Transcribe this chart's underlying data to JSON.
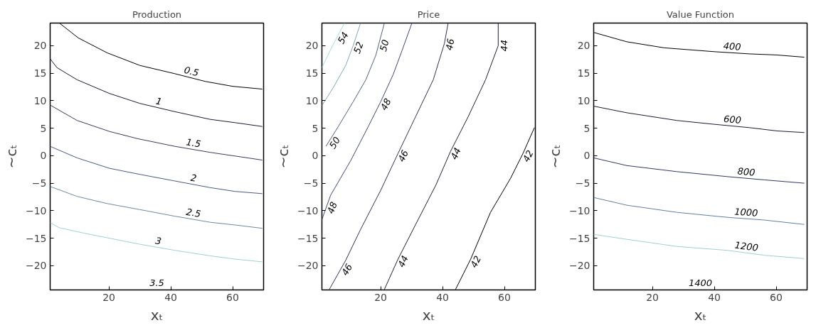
{
  "chart_data": [
    {
      "type": "line",
      "title": "Production",
      "xlabel": "xₜ",
      "ylabel": "~cₜ",
      "xlim": [
        1,
        70
      ],
      "ylim": [
        -24.4,
        24.1
      ],
      "xticks": [
        20,
        40,
        60
      ],
      "yticks": [
        -20,
        -15,
        -10,
        -5,
        0,
        5,
        10,
        15,
        20
      ],
      "grid": false,
      "legend": false,
      "marker": "none",
      "line_style": "solid",
      "series": [
        {
          "name": "0.5",
          "color": "#000000",
          "x": [
            4.0,
            10.1,
            19.4,
            30,
            41.3,
            51.1,
            60,
            69.6
          ],
          "values": [
            24.1,
            21.4,
            18.7,
            16.4,
            14.9,
            13.5,
            12.6,
            12.1
          ]
        },
        {
          "name": "1",
          "color": "#1a1a2e",
          "x": [
            1,
            3.2,
            9.7,
            20.2,
            30,
            41.3,
            52.7,
            60.8,
            69.6
          ],
          "values": [
            17.6,
            16.0,
            13.8,
            11.3,
            9.5,
            8.0,
            6.6,
            6.0,
            5.3
          ]
        },
        {
          "name": "1.5",
          "color": "#3a3a60",
          "x": [
            1,
            9.7,
            20.2,
            29.2,
            41.3,
            52.7,
            60,
            69.6
          ],
          "values": [
            9.2,
            6.4,
            4.4,
            3.1,
            1.7,
            0.6,
            0,
            -0.8
          ]
        },
        {
          "name": "2",
          "color": "#4a5a80",
          "x": [
            1,
            9.7,
            20.2,
            30,
            41.3,
            52.7,
            60.8,
            69.6
          ],
          "values": [
            1.7,
            -0.4,
            -2.3,
            -3.4,
            -4.6,
            -5.8,
            -6.5,
            -6.9
          ]
        },
        {
          "name": "2.5",
          "color": "#6a8aa0",
          "x": [
            1,
            9.7,
            19.4,
            30,
            41.3,
            52.7,
            60.8,
            69.6
          ],
          "values": [
            -5.6,
            -7.4,
            -8.7,
            -9.8,
            -11.0,
            -12.1,
            -12.6,
            -13.2
          ]
        },
        {
          "name": "3",
          "color": "#a0d0d0",
          "x": [
            1,
            4,
            12.1,
            20.2,
            30,
            41.3,
            52.7,
            60.8,
            69.6
          ],
          "values": [
            -12.2,
            -13.1,
            -14.1,
            -15.0,
            -16.1,
            -17.2,
            -18.2,
            -18.8,
            -19.3
          ]
        }
      ],
      "annotations": [
        "3.5"
      ]
    },
    {
      "type": "line",
      "title": "Price",
      "xlabel": "xₜ",
      "ylabel": "~cₜ",
      "xlim": [
        1,
        70
      ],
      "ylim": [
        -24.4,
        24.1
      ],
      "xticks": [
        20,
        40,
        60
      ],
      "yticks": [
        -20,
        -15,
        -10,
        -5,
        0,
        5,
        10,
        15,
        20
      ],
      "grid": false,
      "legend": false,
      "marker": "none",
      "line_style": "solid",
      "series": [
        {
          "color": "#a8d8d8",
          "x": [
            1,
            4,
            8.3
          ],
          "values": [
            16.0,
            19.5,
            24.1
          ]
        },
        {
          "color": "#80a8b8",
          "x": [
            1,
            4.7,
            8.7,
            11.1,
            13.5
          ],
          "values": [
            9.1,
            12.4,
            16.4,
            20,
            24.1
          ]
        },
        {
          "color": "#506080",
          "x": [
            2.3,
            6.3,
            11.1,
            15.2,
            18.4,
            21.2
          ],
          "values": [
            1.7,
            5.3,
            9.8,
            13.8,
            18.2,
            24.1
          ]
        },
        {
          "color": "#404870",
          "x": [
            1,
            3.8,
            10.3,
            16,
            20,
            24,
            26.9,
            30.1
          ],
          "values": [
            -11.6,
            -7.2,
            -0.9,
            5.3,
            9.8,
            14.7,
            19.1,
            24.1
          ]
        },
        {
          "color": "#303050",
          "x": [
            3.4,
            8.7,
            13.5,
            20,
            25.6,
            31.3,
            37,
            40.6,
            41.8
          ],
          "values": [
            -24.3,
            -19.0,
            -13.4,
            -6.3,
            0.4,
            7.1,
            13.8,
            20.4,
            24.1
          ]
        },
        {
          "color": "#202030",
          "x": [
            21.2,
            25.6,
            31.3,
            37.8,
            42.6,
            48.3,
            53.9,
            58,
            58
          ],
          "values": [
            -24.3,
            -18.8,
            -12.5,
            -5.4,
            0.8,
            7.1,
            13.8,
            20,
            24.1
          ]
        },
        {
          "color": "#000000",
          "x": [
            44.2,
            49.1,
            55.5,
            62,
            66,
            69.7
          ],
          "values": [
            -24.3,
            -18.8,
            -10.3,
            -4.1,
            0.4,
            5.1
          ]
        }
      ],
      "annotations": [
        {
          "text": "54",
          "x": 6.2,
          "y": 21.9
        },
        {
          "text": "52",
          "x": 11.1,
          "y": 20
        },
        {
          "text": "50",
          "x": 19.4,
          "y": 20.3
        },
        {
          "text": "50",
          "x": 3.6,
          "y": 2.9
        },
        {
          "text": "48",
          "x": 20,
          "y": 9.8
        },
        {
          "text": "48",
          "x": 2.6,
          "y": -9.1
        },
        {
          "text": "46",
          "x": 40.6,
          "y": 20.4
        },
        {
          "text": "46",
          "x": 25.6,
          "y": 0.4
        },
        {
          "text": "46",
          "x": 7.5,
          "y": -20.2
        },
        {
          "text": "44",
          "x": 58,
          "y": 20
        },
        {
          "text": "44",
          "x": 42.6,
          "y": 0.8
        },
        {
          "text": "44",
          "x": 25.6,
          "y": -18.8
        },
        {
          "text": "42",
          "x": 66,
          "y": 0.4
        },
        {
          "text": "42",
          "x": 49.1,
          "y": -18.8
        }
      ]
    },
    {
      "type": "line",
      "title": "Value Function",
      "xlabel": "xₜ",
      "ylabel": "~cₜ",
      "xlim": [
        1,
        70
      ],
      "ylim": [
        -24.4,
        24.1
      ],
      "xticks": [
        20,
        40,
        60
      ],
      "yticks": [
        -20,
        -15,
        -10,
        -5,
        0,
        5,
        10,
        15,
        20
      ],
      "grid": false,
      "legend": false,
      "marker": "none",
      "line_style": "solid",
      "series": [
        {
          "name": "400",
          "color": "#000000",
          "x": [
            1,
            11.7,
            23.8,
            40,
            51.3,
            60.2,
            69.1
          ],
          "values": [
            22.4,
            20.7,
            19.6,
            18.9,
            18.5,
            18.3,
            17.9
          ]
        },
        {
          "name": "600",
          "color": "#1a1a30",
          "x": [
            1,
            11.7,
            27.9,
            40,
            51.3,
            60.2,
            69.1
          ],
          "values": [
            9.0,
            7.8,
            6.4,
            5.7,
            5.1,
            4.5,
            4.2
          ]
        },
        {
          "name": "800",
          "color": "#303860",
          "x": [
            1,
            11.7,
            27.9,
            44.1,
            56.2,
            69.1
          ],
          "values": [
            -0.4,
            -1.8,
            -2.9,
            -3.8,
            -4.4,
            -5.0
          ]
        },
        {
          "name": "1000",
          "color": "#6080a0",
          "x": [
            1,
            11.7,
            27.9,
            44.1,
            56.2,
            69.1
          ],
          "values": [
            -7.6,
            -9.0,
            -10.3,
            -11.2,
            -11.7,
            -12.5
          ]
        },
        {
          "name": "1200",
          "color": "#a0d0d0",
          "x": [
            1,
            11.7,
            27.9,
            44.1,
            56.2,
            69.1
          ],
          "values": [
            -14.3,
            -15.2,
            -16.5,
            -17.2,
            -18.1,
            -18.7
          ]
        }
      ],
      "annotations": [
        "1400"
      ]
    }
  ]
}
